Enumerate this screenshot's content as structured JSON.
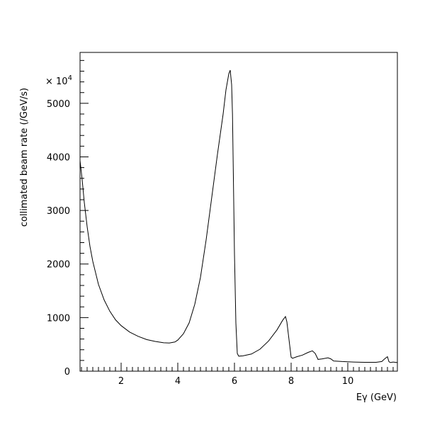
{
  "chart_data": {
    "type": "line",
    "title": "",
    "xlabel": "Eγ (GeV)",
    "ylabel": "collimated beam rate (/GeV/s)",
    "y_multiplier": "× 10",
    "y_multiplier_exp": "4",
    "xlim": [
      0.55,
      11.75
    ],
    "ylim": [
      0,
      5950
    ],
    "x_ticks": [
      2,
      4,
      6,
      8,
      10
    ],
    "x_tick_labels": [
      "2",
      "4",
      "6",
      "8",
      "10"
    ],
    "y_ticks": [
      0,
      1000,
      2000,
      3000,
      4000,
      5000
    ],
    "y_tick_labels": [
      "0",
      "1000",
      "2000",
      "3000",
      "4000",
      "5000"
    ],
    "grid": false,
    "series": [
      {
        "x": [
          0.55,
          0.62,
          0.7,
          0.8,
          0.9,
          1.0,
          1.2,
          1.4,
          1.6,
          1.8,
          2.0,
          2.3,
          2.6,
          2.9,
          3.2,
          3.5,
          3.7,
          3.9,
          4.0,
          4.2,
          4.4,
          4.6,
          4.8,
          5.0,
          5.2,
          5.4,
          5.6,
          5.7,
          5.8,
          5.85,
          5.9,
          5.93,
          5.96,
          6.0,
          6.05,
          6.1,
          6.15,
          6.3,
          6.6,
          6.9,
          7.2,
          7.5,
          7.7,
          7.8,
          7.85,
          7.9,
          8.0,
          8.05,
          8.2,
          8.4,
          8.6,
          8.75,
          8.85,
          8.95,
          9.1,
          9.3,
          9.4,
          9.5,
          9.8,
          10.2,
          10.6,
          11.0,
          11.2,
          11.3,
          11.4,
          11.45,
          11.5,
          11.6,
          11.75
        ],
        "y": [
          3930,
          3600,
          3150,
          2700,
          2330,
          2050,
          1620,
          1330,
          1120,
          960,
          850,
          730,
          650,
          590,
          555,
          530,
          525,
          545,
          580,
          700,
          900,
          1250,
          1750,
          2450,
          3250,
          4050,
          4800,
          5250,
          5550,
          5620,
          5350,
          4800,
          3700,
          2200,
          900,
          330,
          280,
          285,
          320,
          410,
          560,
          770,
          950,
          1020,
          920,
          700,
          260,
          240,
          270,
          300,
          350,
          380,
          330,
          220,
          230,
          250,
          230,
          190,
          180,
          170,
          165,
          165,
          180,
          230,
          270,
          180,
          160,
          170,
          160
        ]
      }
    ]
  }
}
